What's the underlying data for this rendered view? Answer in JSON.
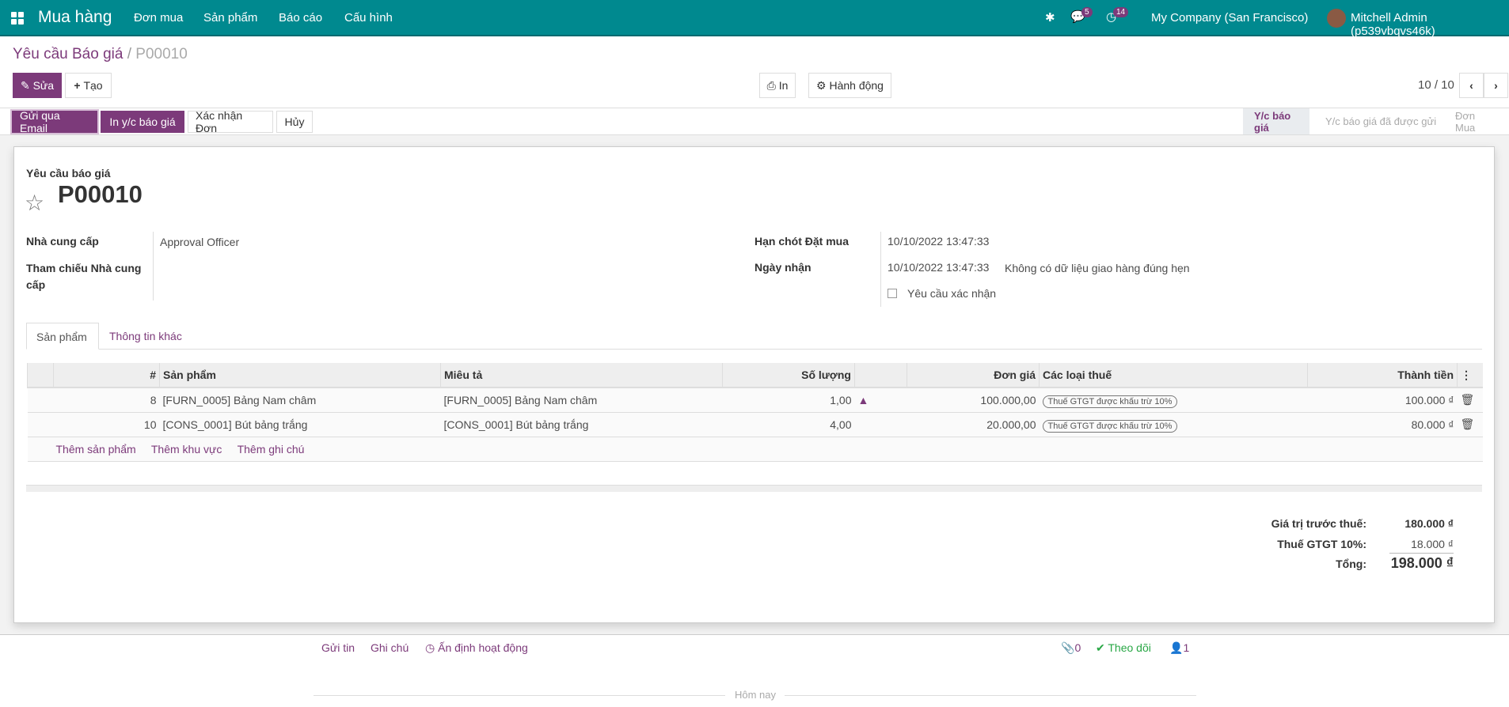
{
  "nav": {
    "app": "Mua hàng",
    "menu": [
      "Đơn mua",
      "Sản phẩm",
      "Báo cáo",
      "Cấu hình"
    ],
    "messages_count": "5",
    "activities_count": "14",
    "company": "My Company (San Francisco)",
    "user": "Mitchell Admin (p539vbqvs46k)"
  },
  "breadcrumb": {
    "parent": "Yêu cầu Báo giá",
    "sep": "/",
    "current": "P00010"
  },
  "toolbar": {
    "edit": "Sửa",
    "create": "Tạo",
    "print": "In",
    "action": "Hành động",
    "pager": "10 / 10"
  },
  "actions": [
    "Gửi qua Email",
    "In y/c báo giá",
    "Xác nhận Đơn",
    "Hủy"
  ],
  "stages": [
    {
      "label": "Y/c báo giá",
      "active": true
    },
    {
      "label": "Y/c báo giá đã được gửi",
      "active": false
    },
    {
      "label": "Đơn Mua",
      "active": false
    }
  ],
  "form": {
    "subtitle": "Yêu cầu báo giá",
    "name": "P00010",
    "vendor_label": "Nhà cung cấp",
    "vendor": "Approval Officer",
    "vendor_ref_label": "Tham chiếu Nhà cung cấp",
    "deadline_label": "Hạn chót Đặt mua",
    "deadline": "10/10/2022 13:47:33",
    "receipt_label": "Ngày nhận",
    "receipt": "10/10/2022 13:47:33",
    "receipt_note": "Không có dữ liệu giao hàng đúng hẹn",
    "ask_confirm": "Yêu cầu xác nhận",
    "ask_confirm_checked": false
  },
  "tabs": [
    "Sản phẩm",
    "Thông tin khác"
  ],
  "table": {
    "headers": [
      "#",
      "Sản phẩm",
      "Miêu tả",
      "Số lượng",
      "",
      "Đơn giá",
      "Các loại thuế",
      "Thành tiền"
    ],
    "rows": [
      {
        "seq": "8",
        "product": "[FURN_0005] Bảng Nam châm",
        "desc": "[FURN_0005] Bảng Nam châm",
        "qty": "1,00",
        "price": "100.000,00",
        "tax": "Thuế GTGT được khấu trừ 10%",
        "subtotal": "100.000 ₫"
      },
      {
        "seq": "10",
        "product": "[CONS_0001] Bút bảng trắng",
        "desc": "[CONS_0001] Bút bảng trắng",
        "qty": "4,00",
        "price": "20.000,00",
        "tax": "Thuế GTGT được khấu trừ 10%",
        "subtotal": "80.000 ₫"
      }
    ],
    "add": [
      "Thêm sản phẩm",
      "Thêm khu vực",
      "Thêm ghi chú"
    ]
  },
  "totals": {
    "untaxed_label": "Giá trị trước thuế:",
    "untaxed": "180.000 ₫",
    "tax_label": "Thuế GTGT 10%:",
    "tax": "18.000 ₫",
    "total_label": "Tổng:",
    "total": "198.000 ₫"
  },
  "chatter": {
    "send": "Gửi tin",
    "note": "Ghi chú",
    "schedule": "Ấn định hoạt động",
    "attachments": "0",
    "follow": "Theo dõi",
    "followers": "1",
    "today": "Hôm nay"
  }
}
